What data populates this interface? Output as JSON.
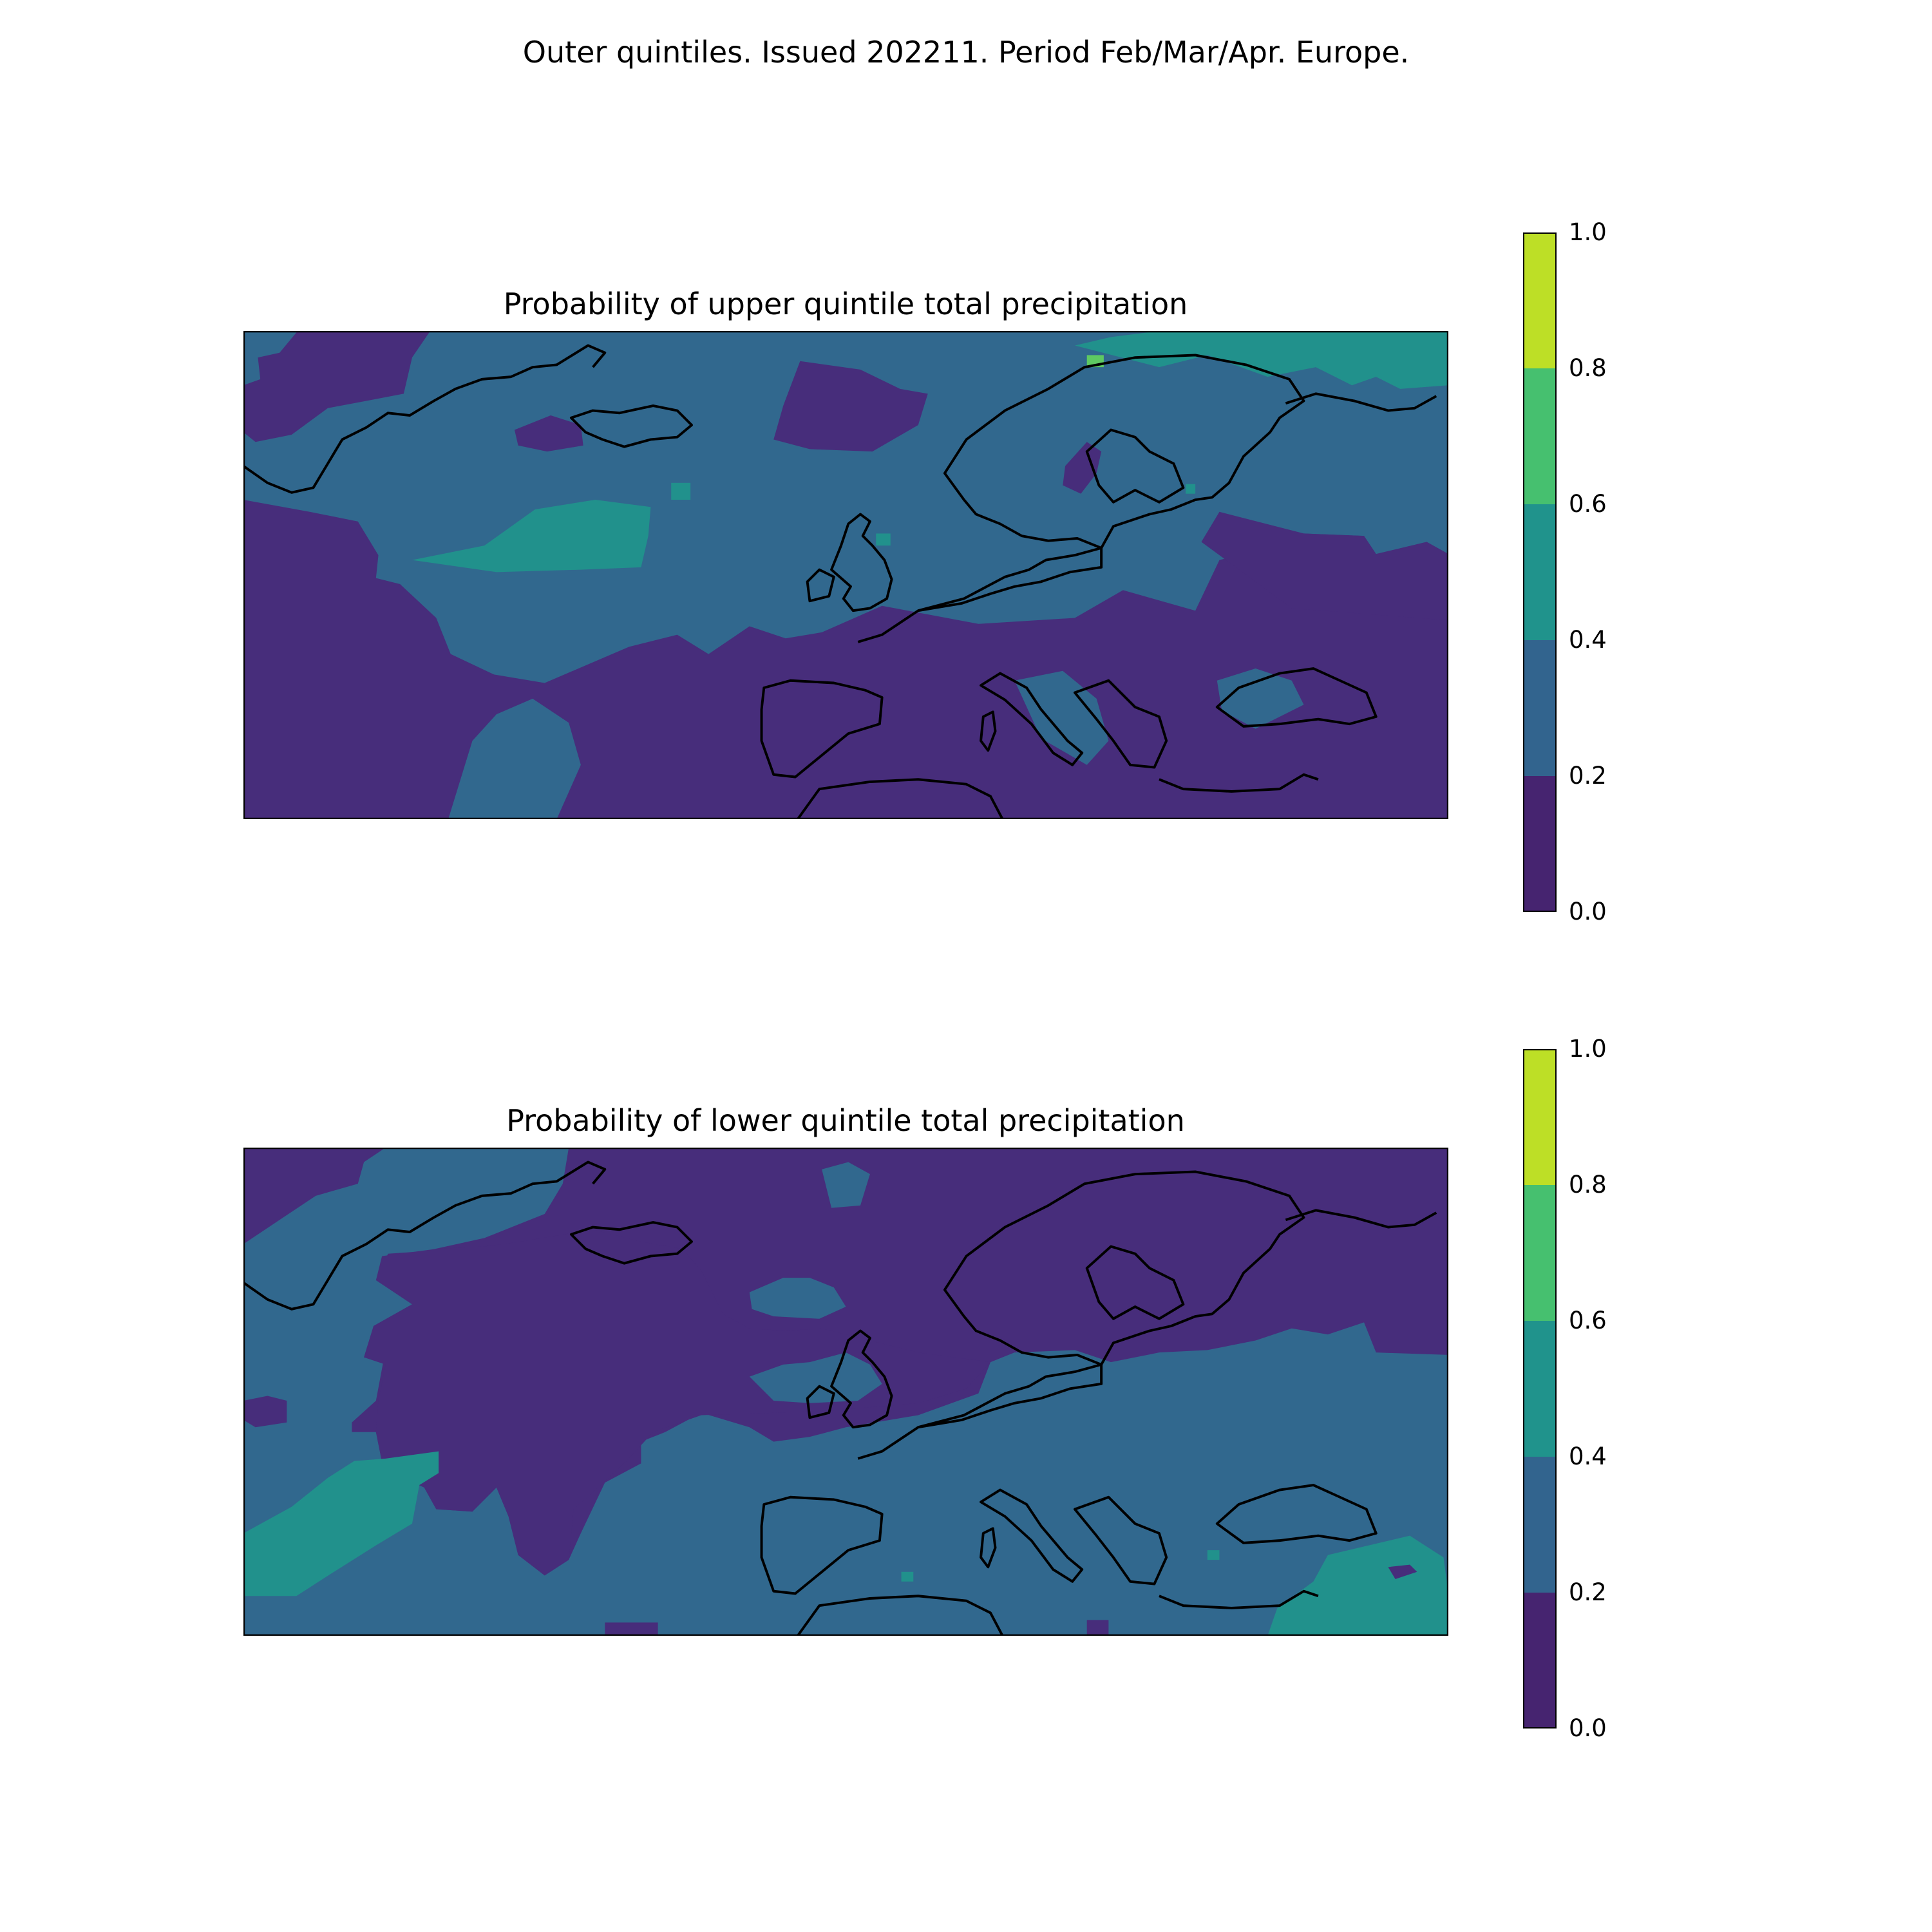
{
  "figure": {
    "suptitle": "Outer quintiles. Issued 202211. Period Feb/Mar/Apr. Europe."
  },
  "colorbar": {
    "levels": [
      0.0,
      0.2,
      0.4,
      0.6,
      0.8,
      1.0
    ],
    "tick_labels": [
      "1.0",
      "0.8",
      "0.6",
      "0.4",
      "0.2",
      "0.0"
    ],
    "colors": [
      "#440154",
      "#3b528b",
      "#21918c",
      "#5ec962",
      "#fde725"
    ]
  },
  "chart_data": [
    {
      "type": "heatmap",
      "title": "Probability of upper quintile total precipitation",
      "variable": "Probability of upper quintile total precipitation",
      "colorbar_range": [
        0.0,
        1.0
      ],
      "colorbar_bins": [
        [
          0.0,
          0.2
        ],
        [
          0.2,
          0.4
        ],
        [
          0.4,
          0.6
        ],
        [
          0.6,
          0.8
        ],
        [
          0.8,
          1.0
        ]
      ],
      "dominant_category": "0.2-0.4",
      "visible_maximum_category": "0.6-0.8",
      "regions_above_0_4": [
        "northern Norway and northwestern Russia",
        "mid-Atlantic west of Ireland",
        "small patches in Baltic and North Sea areas"
      ],
      "regions_below_0_2": [
        "Greenland coast and far west Atlantic",
        "southern Atlantic",
        "Iberia",
        "Mediterranean",
        "eastern Europe"
      ]
    },
    {
      "type": "heatmap",
      "title": "Probability of lower quintile total precipitation",
      "variable": "Probability of lower quintile total precipitation",
      "colorbar_range": [
        0.0,
        1.0
      ],
      "colorbar_bins": [
        [
          0.0,
          0.2
        ],
        [
          0.2,
          0.4
        ],
        [
          0.4,
          0.6
        ],
        [
          0.6,
          0.8
        ],
        [
          0.8,
          1.0
        ]
      ],
      "dominant_category": "0.0-0.2 in the north, 0.2-0.4 in the south",
      "visible_maximum_category": "0.4-0.6",
      "regions_above_0_4": [
        "southwestern Atlantic",
        "eastern Mediterranean and Levant",
        "small patches near Sardinia and the Aegean"
      ],
      "regions_below_0_2": [
        "central and northern Atlantic",
        "Scandinavia",
        "eastern Europe",
        "British Isles"
      ]
    }
  ]
}
